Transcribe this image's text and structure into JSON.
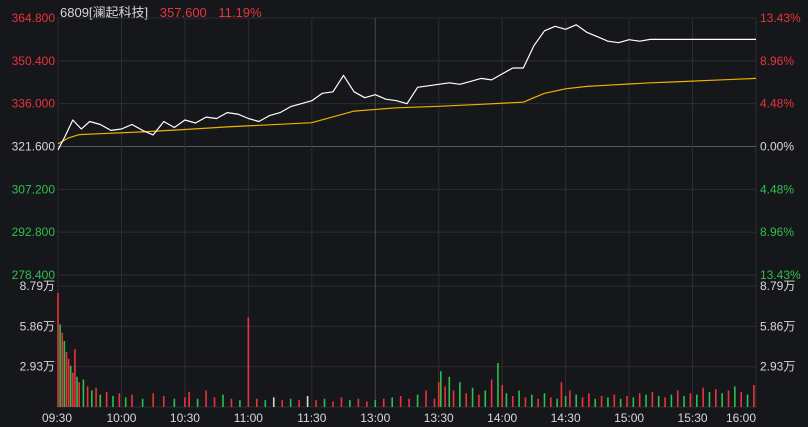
{
  "header": {
    "stock": "6809[澜起科技]",
    "price": "357.600",
    "change_pct": "11.19%"
  },
  "colors": {
    "background": "#16171b",
    "up": "#e8343a",
    "down": "#2fbf4a",
    "neutral": "#d8d8d8",
    "price_line": "#ffffff",
    "avg_line": "#f0b000",
    "grid": "#2c2e33"
  },
  "chart_data": {
    "type": "line",
    "title": "",
    "price_axis": {
      "ticks": [
        364.8,
        350.4,
        336.0,
        321.6,
        307.2,
        292.8,
        278.4
      ],
      "tick_labels": [
        "364.800",
        "350.400",
        "336.000",
        "321.600",
        "307.200",
        "292.800",
        "278.400"
      ],
      "reference": 321.6,
      "ylim": [
        278.4,
        364.8
      ]
    },
    "pct_axis": {
      "tick_labels": [
        "13.43%",
        "8.96%",
        "4.48%",
        "0.00%",
        "4.48%",
        "8.96%",
        "13.43%"
      ]
    },
    "volume_axis": {
      "tick_labels": [
        "8.79万",
        "5.86万",
        "2.93万"
      ],
      "tick_values": [
        87900,
        58600,
        29300
      ],
      "right_tick_labels": [
        "8.79万",
        "5.86万",
        "2.93万"
      ]
    },
    "x_tick_labels": [
      "09:30",
      "10:00",
      "10:30",
      "11:00",
      "11:30",
      "13:00",
      "13:30",
      "14:00",
      "14:30",
      "15:00",
      "15:30",
      "16:00"
    ],
    "series": [
      {
        "name": "price",
        "minutes": [
          0,
          3,
          7,
          11,
          15,
          20,
          25,
          30,
          35,
          40,
          45,
          50,
          55,
          60,
          65,
          70,
          75,
          80,
          85,
          90,
          95,
          100,
          105,
          110,
          115,
          120,
          125,
          130,
          135,
          140,
          145,
          150,
          155,
          160,
          165,
          170,
          175,
          180,
          185,
          190,
          195,
          200,
          205,
          210,
          215,
          220,
          225,
          230,
          235,
          240,
          245,
          250,
          255,
          260,
          265,
          270,
          275,
          280,
          285,
          290,
          295,
          300,
          305,
          310,
          315,
          320,
          325,
          330
        ],
        "values": [
          320.5,
          324.5,
          330.5,
          327.5,
          330.0,
          329.0,
          327.0,
          327.5,
          329.0,
          327.0,
          325.5,
          330.0,
          328.0,
          330.5,
          329.5,
          331.5,
          331.0,
          333.0,
          332.5,
          331.0,
          330.0,
          332.0,
          333.0,
          335.0,
          336.0,
          337.0,
          339.5,
          340.0,
          345.5,
          340.0,
          338.0,
          339.0,
          337.5,
          337.0,
          336.0,
          341.5,
          342.0,
          342.5,
          343.0,
          342.5,
          343.5,
          344.5,
          344.0,
          346.0,
          348.0,
          348.0,
          355.5,
          360.5,
          362.0,
          361.0,
          362.5,
          360.0,
          358.5,
          357.0,
          356.5,
          357.5,
          357.0,
          357.6,
          357.6,
          357.6,
          357.6,
          357.6,
          357.6,
          357.6,
          357.6,
          357.6,
          357.6,
          357.6
        ]
      },
      {
        "name": "average",
        "minutes": [
          0,
          5,
          10,
          20,
          40,
          60,
          80,
          100,
          120,
          140,
          160,
          180,
          200,
          220,
          225,
          230,
          240,
          250,
          260,
          270,
          280,
          290,
          300,
          310,
          320,
          330
        ],
        "values": [
          322.5,
          324.5,
          325.6,
          325.9,
          326.5,
          327.3,
          328.2,
          328.9,
          329.6,
          333.5,
          334.6,
          335.1,
          335.8,
          336.5,
          338.0,
          339.5,
          341.0,
          341.8,
          342.2,
          342.6,
          343.0,
          343.3,
          343.6,
          343.9,
          344.2,
          344.5
        ]
      }
    ],
    "volume": [
      {
        "minute": 0,
        "v": 83000,
        "d": "up"
      },
      {
        "minute": 1,
        "v": 60000,
        "d": "down"
      },
      {
        "minute": 2,
        "v": 54000,
        "d": "up"
      },
      {
        "minute": 3,
        "v": 48000,
        "d": "down"
      },
      {
        "minute": 4,
        "v": 40000,
        "d": "up"
      },
      {
        "minute": 5,
        "v": 35000,
        "d": "up"
      },
      {
        "minute": 6,
        "v": 30000,
        "d": "down"
      },
      {
        "minute": 7,
        "v": 25000,
        "d": "up"
      },
      {
        "minute": 8,
        "v": 42000,
        "d": "up"
      },
      {
        "minute": 9,
        "v": 22000,
        "d": "down"
      },
      {
        "minute": 10,
        "v": 18000,
        "d": "up"
      },
      {
        "minute": 12,
        "v": 20000,
        "d": "down"
      },
      {
        "minute": 14,
        "v": 15000,
        "d": "up"
      },
      {
        "minute": 16,
        "v": 12000,
        "d": "down"
      },
      {
        "minute": 18,
        "v": 14000,
        "d": "up"
      },
      {
        "minute": 20,
        "v": 9000,
        "d": "down"
      },
      {
        "minute": 23,
        "v": 11000,
        "d": "up"
      },
      {
        "minute": 26,
        "v": 8000,
        "d": "down"
      },
      {
        "minute": 29,
        "v": 10000,
        "d": "up"
      },
      {
        "minute": 32,
        "v": 7000,
        "d": "down"
      },
      {
        "minute": 35,
        "v": 9000,
        "d": "up"
      },
      {
        "minute": 40,
        "v": 6000,
        "d": "down"
      },
      {
        "minute": 45,
        "v": 10000,
        "d": "up"
      },
      {
        "minute": 50,
        "v": 8000,
        "d": "up"
      },
      {
        "minute": 55,
        "v": 6000,
        "d": "down"
      },
      {
        "minute": 60,
        "v": 7000,
        "d": "up"
      },
      {
        "minute": 62,
        "v": 11000,
        "d": "up"
      },
      {
        "minute": 66,
        "v": 6000,
        "d": "down"
      },
      {
        "minute": 70,
        "v": 12000,
        "d": "up"
      },
      {
        "minute": 74,
        "v": 7000,
        "d": "up"
      },
      {
        "minute": 78,
        "v": 9000,
        "d": "down"
      },
      {
        "minute": 82,
        "v": 6000,
        "d": "up"
      },
      {
        "minute": 86,
        "v": 5000,
        "d": "down"
      },
      {
        "minute": 90,
        "v": 65000,
        "d": "up"
      },
      {
        "minute": 94,
        "v": 6000,
        "d": "up"
      },
      {
        "minute": 98,
        "v": 5000,
        "d": "down"
      },
      {
        "minute": 102,
        "v": 7000,
        "d": "neutral"
      },
      {
        "minute": 106,
        "v": 5000,
        "d": "up"
      },
      {
        "minute": 110,
        "v": 6000,
        "d": "down"
      },
      {
        "minute": 114,
        "v": 5000,
        "d": "up"
      },
      {
        "minute": 118,
        "v": 8000,
        "d": "neutral"
      },
      {
        "minute": 122,
        "v": 5000,
        "d": "up"
      },
      {
        "minute": 126,
        "v": 6000,
        "d": "down"
      },
      {
        "minute": 130,
        "v": 4000,
        "d": "up"
      },
      {
        "minute": 134,
        "v": 7000,
        "d": "up"
      },
      {
        "minute": 138,
        "v": 5000,
        "d": "down"
      },
      {
        "minute": 142,
        "v": 6000,
        "d": "up"
      },
      {
        "minute": 146,
        "v": 4000,
        "d": "up"
      },
      {
        "minute": 150,
        "v": 5000,
        "d": "down"
      },
      {
        "minute": 154,
        "v": 6000,
        "d": "up"
      },
      {
        "minute": 158,
        "v": 7000,
        "d": "down"
      },
      {
        "minute": 162,
        "v": 8000,
        "d": "up"
      },
      {
        "minute": 166,
        "v": 6000,
        "d": "up"
      },
      {
        "minute": 170,
        "v": 9000,
        "d": "down"
      },
      {
        "minute": 174,
        "v": 12000,
        "d": "up"
      },
      {
        "minute": 178,
        "v": 6000,
        "d": "up"
      },
      {
        "minute": 180,
        "v": 18000,
        "d": "up"
      },
      {
        "minute": 181,
        "v": 26000,
        "d": "down"
      },
      {
        "minute": 183,
        "v": 15000,
        "d": "up"
      },
      {
        "minute": 185,
        "v": 22000,
        "d": "down"
      },
      {
        "minute": 187,
        "v": 12000,
        "d": "up"
      },
      {
        "minute": 190,
        "v": 18000,
        "d": "down"
      },
      {
        "minute": 193,
        "v": 10000,
        "d": "up"
      },
      {
        "minute": 196,
        "v": 14000,
        "d": "down"
      },
      {
        "minute": 199,
        "v": 9000,
        "d": "up"
      },
      {
        "minute": 202,
        "v": 12000,
        "d": "down"
      },
      {
        "minute": 205,
        "v": 20000,
        "d": "up"
      },
      {
        "minute": 208,
        "v": 32000,
        "d": "down"
      },
      {
        "minute": 210,
        "v": 16000,
        "d": "up"
      },
      {
        "minute": 212,
        "v": 10000,
        "d": "down"
      },
      {
        "minute": 215,
        "v": 8000,
        "d": "up"
      },
      {
        "minute": 218,
        "v": 12000,
        "d": "down"
      },
      {
        "minute": 221,
        "v": 7000,
        "d": "up"
      },
      {
        "minute": 224,
        "v": 9000,
        "d": "down"
      },
      {
        "minute": 227,
        "v": 6000,
        "d": "up"
      },
      {
        "minute": 230,
        "v": 10000,
        "d": "down"
      },
      {
        "minute": 233,
        "v": 7000,
        "d": "up"
      },
      {
        "minute": 236,
        "v": 6000,
        "d": "down"
      },
      {
        "minute": 238,
        "v": 18000,
        "d": "up"
      },
      {
        "minute": 240,
        "v": 8000,
        "d": "down"
      },
      {
        "minute": 242,
        "v": 12000,
        "d": "up"
      },
      {
        "minute": 245,
        "v": 9000,
        "d": "down"
      },
      {
        "minute": 248,
        "v": 7000,
        "d": "up"
      },
      {
        "minute": 251,
        "v": 10000,
        "d": "up"
      },
      {
        "minute": 254,
        "v": 6000,
        "d": "down"
      },
      {
        "minute": 257,
        "v": 8000,
        "d": "up"
      },
      {
        "minute": 260,
        "v": 7000,
        "d": "down"
      },
      {
        "minute": 263,
        "v": 9000,
        "d": "up"
      },
      {
        "minute": 266,
        "v": 6000,
        "d": "down"
      },
      {
        "minute": 269,
        "v": 8000,
        "d": "up"
      },
      {
        "minute": 272,
        "v": 7000,
        "d": "down"
      },
      {
        "minute": 275,
        "v": 10000,
        "d": "up"
      },
      {
        "minute": 278,
        "v": 9000,
        "d": "down"
      },
      {
        "minute": 281,
        "v": 11000,
        "d": "up"
      },
      {
        "minute": 284,
        "v": 8000,
        "d": "down"
      },
      {
        "minute": 287,
        "v": 7000,
        "d": "up"
      },
      {
        "minute": 290,
        "v": 9000,
        "d": "down"
      },
      {
        "minute": 293,
        "v": 12000,
        "d": "up"
      },
      {
        "minute": 296,
        "v": 8000,
        "d": "down"
      },
      {
        "minute": 299,
        "v": 10000,
        "d": "up"
      },
      {
        "minute": 302,
        "v": 9000,
        "d": "down"
      },
      {
        "minute": 305,
        "v": 14000,
        "d": "up"
      },
      {
        "minute": 308,
        "v": 11000,
        "d": "down"
      },
      {
        "minute": 311,
        "v": 13000,
        "d": "up"
      },
      {
        "minute": 314,
        "v": 10000,
        "d": "down"
      },
      {
        "minute": 317,
        "v": 12000,
        "d": "up"
      },
      {
        "minute": 320,
        "v": 15000,
        "d": "down"
      },
      {
        "minute": 323,
        "v": 11000,
        "d": "up"
      },
      {
        "minute": 326,
        "v": 9000,
        "d": "down"
      },
      {
        "minute": 329,
        "v": 16000,
        "d": "up"
      }
    ]
  }
}
